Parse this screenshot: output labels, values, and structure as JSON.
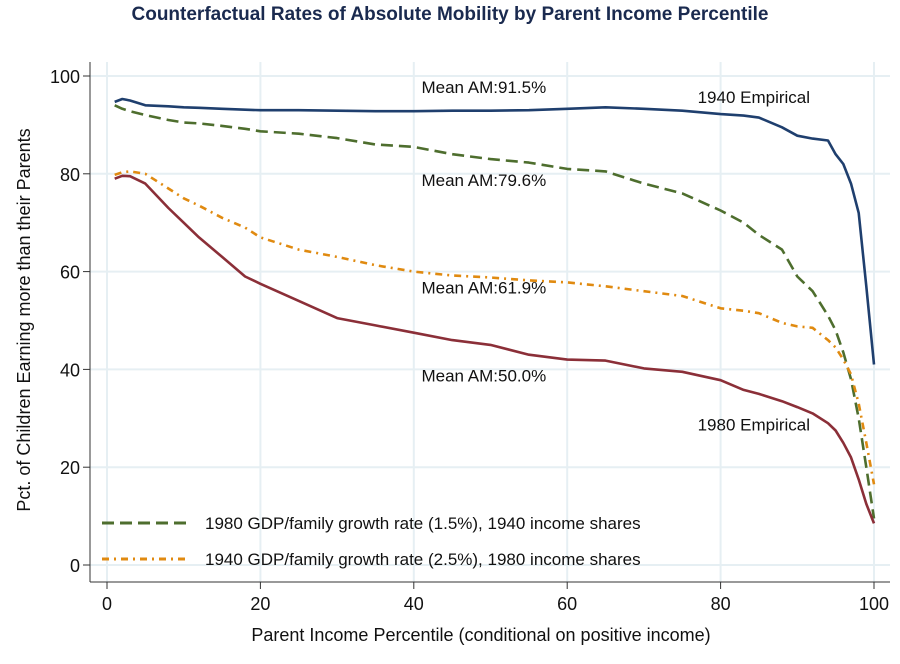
{
  "chart_data": {
    "type": "line",
    "title": "Counterfactual Rates of Absolute Mobility by Parent Income Percentile",
    "xlabel": "Parent Income Percentile (conditional on positive income)",
    "ylabel": "Pct. of Children Earning more than their Parents",
    "xlim": [
      0,
      100
    ],
    "ylim": [
      0,
      100
    ],
    "xticks": [
      0,
      20,
      40,
      60,
      80,
      100
    ],
    "yticks": [
      0,
      20,
      40,
      60,
      80,
      100
    ],
    "grid": true,
    "legend_position": "bottom-left",
    "x": [
      1,
      2,
      3,
      5,
      8,
      10,
      12,
      15,
      18,
      20,
      25,
      30,
      35,
      40,
      45,
      50,
      55,
      60,
      65,
      70,
      75,
      80,
      83,
      85,
      88,
      90,
      92,
      94,
      95,
      96,
      97,
      98,
      99,
      100
    ],
    "series": [
      {
        "name": "1940 Empirical",
        "color": "#1f3f6e",
        "style": "solid",
        "values": [
          94.7,
          95.3,
          95.0,
          94.0,
          93.8,
          93.6,
          93.5,
          93.3,
          93.1,
          93.0,
          93.0,
          92.9,
          92.8,
          92.8,
          92.9,
          92.9,
          93.0,
          93.3,
          93.6,
          93.3,
          92.9,
          92.2,
          91.9,
          91.5,
          89.5,
          87.8,
          87.2,
          86.8,
          84.0,
          82.0,
          78.0,
          72.0,
          57.0,
          41.0
        ]
      },
      {
        "name": "1980 GDP/family growth rate (1.5%), 1940 income shares",
        "color": "#4e6e2e",
        "style": "dashed",
        "values": [
          94.0,
          93.3,
          92.8,
          92.0,
          91.0,
          90.5,
          90.3,
          89.8,
          89.2,
          88.7,
          88.2,
          87.3,
          86.0,
          85.5,
          84.0,
          83.0,
          82.3,
          81.0,
          80.5,
          78.0,
          76.0,
          72.5,
          70.0,
          67.5,
          64.5,
          59.0,
          56.0,
          51.0,
          48.0,
          43.5,
          38.0,
          30.0,
          20.0,
          9.5
        ]
      },
      {
        "name": "1940 GDP/family growth rate (2.5%), 1980 income shares",
        "color": "#e08a10",
        "style": "dashdot",
        "values": [
          79.8,
          80.3,
          80.5,
          80.0,
          77.0,
          75.0,
          73.5,
          71.0,
          69.0,
          67.0,
          64.5,
          63.0,
          61.3,
          60.0,
          59.2,
          58.8,
          58.2,
          57.8,
          57.0,
          56.0,
          55.0,
          52.5,
          52.0,
          51.5,
          49.5,
          48.8,
          48.5,
          46.0,
          44.5,
          42.0,
          39.0,
          33.0,
          25.0,
          16.5
        ]
      },
      {
        "name": "1980 Empirical",
        "color": "#8b2f38",
        "style": "solid",
        "values": [
          79.0,
          79.6,
          79.5,
          78.0,
          73.0,
          70.0,
          67.0,
          63.0,
          59.0,
          57.5,
          54.0,
          50.5,
          49.0,
          47.5,
          46.0,
          45.0,
          43.0,
          42.0,
          41.8,
          40.2,
          39.5,
          37.8,
          35.8,
          35.0,
          33.5,
          32.3,
          31.0,
          29.0,
          27.5,
          25.0,
          22.0,
          17.5,
          12.5,
          8.5
        ]
      }
    ],
    "annotations": [
      {
        "text": "Mean AM:91.5%",
        "x": 41,
        "y": 96.5
      },
      {
        "text": "1940 Empirical",
        "x": 77,
        "y": 94.5
      },
      {
        "text": "Mean AM:79.6%",
        "x": 41,
        "y": 77.5
      },
      {
        "text": "Mean AM:61.9%",
        "x": 41,
        "y": 55.5
      },
      {
        "text": "Mean AM:50.0%",
        "x": 41,
        "y": 37.5
      },
      {
        "text": "1980 Empirical",
        "x": 77,
        "y": 27.5
      }
    ],
    "legend": [
      {
        "label": "1980 GDP/family growth rate (1.5%), 1940 income shares",
        "color": "#4e6e2e",
        "style": "dashed"
      },
      {
        "label": "1940 GDP/family growth rate (2.5%), 1980 income shares",
        "color": "#e08a10",
        "style": "dashdot"
      }
    ]
  }
}
